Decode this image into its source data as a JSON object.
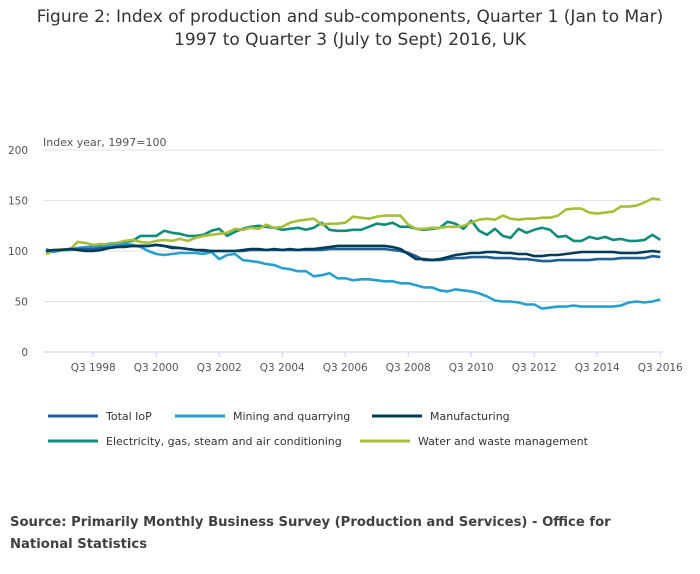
{
  "title_line1": "Figure 2: Index of production and sub-components, Quarter 1 (Jan to Mar)",
  "title_line2": "1997 to Quarter 3 (July to Sept) 2016, UK",
  "source": "Source: Primarily Monthly Business Survey (Production and Services) - Office for National Statistics",
  "chart_data": {
    "type": "line",
    "title": "Figure 2: Index of production and sub-components, Quarter 1 (Jan to Mar) 1997 to Quarter 3 (July to Sept) 2016, UK",
    "ylabel": "Index year, 1997=100",
    "ylim": [
      0,
      200
    ],
    "yticks": [
      "0",
      "50",
      "100",
      "150",
      "200"
    ],
    "xlim": [
      "Q1 1997",
      "Q3 2016"
    ],
    "xtick_labels": [
      "Q3 1998",
      "Q3 2000",
      "Q3 2002",
      "Q3 2004",
      "Q3 2006",
      "Q3 2008",
      "Q3 2010",
      "Q3 2012",
      "Q3 2014",
      "Q3 2016"
    ],
    "grid": true,
    "legend_position": "bottom",
    "series": [
      {
        "name": "Total IoP",
        "color": "#206095",
        "values": [
          100,
          101,
          101,
          102,
          102,
          102,
          102,
          103,
          103,
          104,
          105,
          105,
          105,
          105,
          106,
          105,
          104,
          103,
          102,
          101,
          100,
          100,
          100,
          100,
          100,
          100,
          101,
          101,
          101,
          101,
          101,
          101,
          101,
          101,
          101,
          101,
          102,
          102,
          102,
          102,
          102,
          102,
          102,
          102,
          101,
          100,
          98,
          95,
          91,
          91,
          91,
          92,
          93,
          93,
          94,
          94,
          94,
          93,
          93,
          93,
          92,
          92,
          91,
          90,
          90,
          91,
          91,
          91,
          91,
          91,
          92,
          92,
          92,
          93,
          93,
          93,
          93,
          95,
          94
        ]
      },
      {
        "name": "Mining and quarrying",
        "color": "#27a0cc",
        "values": [
          102,
          99,
          101,
          101,
          103,
          104,
          104,
          104,
          105,
          106,
          107,
          106,
          104,
          100,
          97,
          96,
          97,
          98,
          98,
          98,
          97,
          99,
          92,
          96,
          97,
          91,
          90,
          89,
          87,
          86,
          83,
          82,
          80,
          80,
          75,
          76,
          78,
          73,
          73,
          71,
          72,
          72,
          71,
          70,
          70,
          68,
          68,
          66,
          64,
          64,
          61,
          60,
          62,
          61,
          60,
          58,
          55,
          51,
          50,
          50,
          49,
          47,
          47,
          43,
          44,
          45,
          45,
          46,
          45,
          45,
          45,
          45,
          45,
          46,
          49,
          50,
          49,
          50,
          52
        ]
      },
      {
        "name": "Manufacturing",
        "color": "#003c57",
        "values": [
          100,
          101,
          101,
          102,
          101,
          100,
          100,
          101,
          103,
          104,
          104,
          105,
          105,
          105,
          106,
          105,
          103,
          103,
          102,
          101,
          101,
          100,
          100,
          100,
          100,
          101,
          102,
          102,
          101,
          102,
          101,
          102,
          101,
          102,
          102,
          103,
          104,
          105,
          105,
          105,
          105,
          105,
          105,
          105,
          104,
          102,
          97,
          92,
          92,
          91,
          92,
          94,
          96,
          97,
          98,
          98,
          99,
          99,
          98,
          98,
          97,
          97,
          95,
          95,
          96,
          96,
          97,
          98,
          99,
          99,
          99,
          99,
          99,
          98,
          98,
          98,
          99,
          100,
          99
        ]
      },
      {
        "name": "Electricity, gas, steam and air conditioning",
        "color": "#118c7b",
        "values": [
          98,
          100,
          101,
          101,
          102,
          103,
          105,
          106,
          107,
          108,
          109,
          110,
          115,
          115,
          115,
          120,
          118,
          117,
          115,
          115,
          116,
          120,
          122,
          115,
          119,
          122,
          124,
          125,
          124,
          123,
          121,
          122,
          123,
          121,
          123,
          128,
          121,
          120,
          120,
          121,
          121,
          124,
          127,
          126,
          128,
          124,
          124,
          122,
          121,
          122,
          123,
          129,
          127,
          122,
          130,
          120,
          116,
          122,
          115,
          113,
          122,
          118,
          121,
          123,
          121,
          114,
          115,
          110,
          110,
          114,
          112,
          114,
          111,
          112,
          110,
          110,
          111,
          116,
          111
        ]
      },
      {
        "name": "Water and waste management",
        "color": "#a8bd3a",
        "values": [
          97,
          100,
          102,
          101,
          109,
          108,
          106,
          107,
          106,
          108,
          110,
          111,
          109,
          108,
          110,
          111,
          110,
          112,
          110,
          113,
          115,
          116,
          117,
          118,
          122,
          121,
          123,
          122,
          126,
          123,
          124,
          128,
          130,
          131,
          132,
          126,
          127,
          127,
          128,
          134,
          133,
          132,
          134,
          135,
          135,
          135,
          126,
          122,
          122,
          123,
          123,
          124,
          124,
          125,
          128,
          131,
          132,
          131,
          135,
          132,
          131,
          132,
          132,
          133,
          133,
          135,
          141,
          142,
          142,
          138,
          137,
          138,
          139,
          144,
          144,
          145,
          148,
          152,
          151
        ]
      }
    ]
  }
}
